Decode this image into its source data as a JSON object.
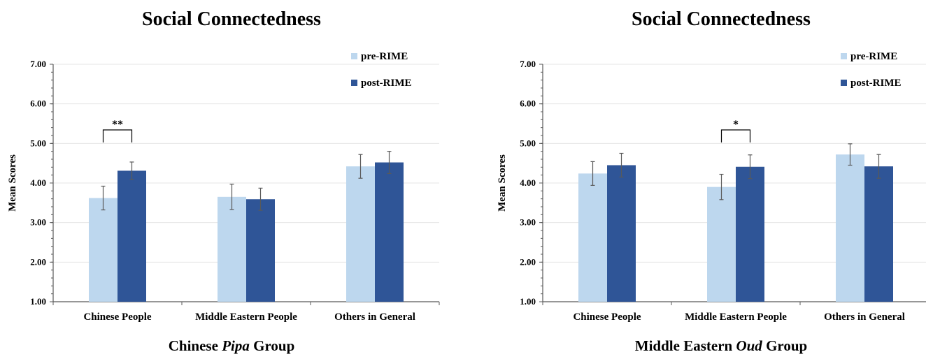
{
  "colors": {
    "pre": "#bdd7ee",
    "post": "#2f5597",
    "grid": "#e6e6e6",
    "axis": "#595959"
  },
  "chart_data": [
    {
      "type": "bar",
      "title": "Social Connectedness",
      "caption": {
        "before": "Chinese ",
        "italic": "Pipa",
        "after": " Group"
      },
      "ylabel": "Mean Scores",
      "ylim": [
        1,
        7
      ],
      "yticks": [
        "1.00",
        "2.00",
        "3.00",
        "4.00",
        "5.00",
        "6.00",
        "7.00"
      ],
      "categories": [
        "Chinese People",
        "Middle Eastern People",
        "Others in General"
      ],
      "series": [
        {
          "name": "pre-RIME",
          "values": [
            3.62,
            3.65,
            4.42
          ],
          "errors": [
            0.3,
            0.32,
            0.3
          ]
        },
        {
          "name": "post-RIME",
          "values": [
            4.31,
            3.59,
            4.52
          ],
          "errors": [
            0.22,
            0.28,
            0.28
          ]
        }
      ],
      "annotations": [
        {
          "category": 0,
          "label": "**"
        }
      ],
      "legend": "top-right"
    },
    {
      "type": "bar",
      "title": "Social Connectedness",
      "caption": {
        "before": "Middle Eastern ",
        "italic": "Oud",
        "after": " Group"
      },
      "ylabel": "Mean Scores",
      "ylim": [
        1,
        7
      ],
      "yticks": [
        "1.00",
        "2.00",
        "3.00",
        "4.00",
        "5.00",
        "6.00",
        "7.00"
      ],
      "categories": [
        "Chinese People",
        "Middle Eastern People",
        "Others in General"
      ],
      "series": [
        {
          "name": "pre-RIME",
          "values": [
            4.24,
            3.9,
            4.72
          ],
          "errors": [
            0.3,
            0.32,
            0.27
          ]
        },
        {
          "name": "post-RIME",
          "values": [
            4.45,
            4.41,
            4.42
          ],
          "errors": [
            0.3,
            0.3,
            0.3
          ]
        }
      ],
      "annotations": [
        {
          "category": 1,
          "label": "*"
        }
      ],
      "legend": "top-right"
    }
  ]
}
